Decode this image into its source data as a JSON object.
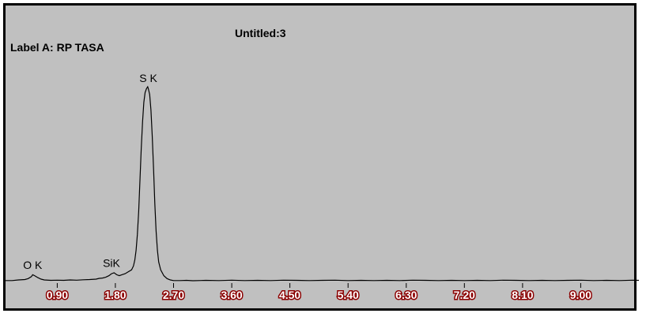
{
  "chart_data": {
    "type": "line",
    "title": "Untitled:3",
    "label_a": "Label A: RP TASA",
    "xlim": [
      0.1,
      9.9
    ],
    "ylim": [
      0,
      100
    ],
    "x_ticks": [
      "0.90",
      "1.80",
      "2.70",
      "3.60",
      "4.50",
      "5.40",
      "6.30",
      "7.20",
      "8.10",
      "9.00"
    ],
    "peak_labels": [
      {
        "text": "O K",
        "x": 0.52,
        "y": 4
      },
      {
        "text": "SiK",
        "x": 1.74,
        "y": 5
      },
      {
        "text": "S K",
        "x": 2.31,
        "y": 100
      }
    ],
    "series": [
      {
        "x": [
          0.1,
          0.2,
          0.3,
          0.4,
          0.45,
          0.5,
          0.52,
          0.55,
          0.6,
          0.65,
          0.7,
          0.8,
          0.9,
          1.0,
          1.1,
          1.2,
          1.3,
          1.4,
          1.5,
          1.55,
          1.6,
          1.65,
          1.7,
          1.74,
          1.78,
          1.82,
          1.86,
          1.9,
          1.95,
          2.0,
          2.05,
          2.08,
          2.1,
          2.12,
          2.14,
          2.16,
          2.18,
          2.2,
          2.22,
          2.24,
          2.26,
          2.28,
          2.3,
          2.31,
          2.33,
          2.35,
          2.37,
          2.39,
          2.41,
          2.43,
          2.45,
          2.47,
          2.5,
          2.55,
          2.6,
          2.65,
          2.7,
          2.8,
          2.9,
          3.0,
          3.2,
          3.4,
          3.6,
          3.8,
          4.0,
          4.2,
          4.4,
          4.6,
          4.8,
          5.0,
          5.2,
          5.4,
          5.6,
          5.8,
          6.0,
          6.2,
          6.4,
          6.6,
          6.8,
          7.0,
          7.2,
          7.4,
          7.6,
          7.8,
          8.0,
          8.2,
          8.4,
          8.6,
          8.8,
          9.0,
          9.2,
          9.4,
          9.6,
          9.8,
          9.9
        ],
        "y": [
          0.5,
          0.5,
          0.8,
          1.0,
          1.5,
          2.5,
          3.5,
          3.0,
          2.0,
          1.2,
          0.8,
          0.6,
          0.7,
          0.6,
          0.8,
          0.7,
          0.9,
          1.0,
          1.2,
          1.6,
          1.8,
          2.2,
          3.0,
          4.0,
          4.5,
          3.5,
          3.0,
          3.5,
          4.0,
          5.0,
          6.0,
          8.0,
          11.0,
          16.0,
          24.0,
          36.0,
          52.0,
          68.0,
          82.0,
          92.0,
          97.0,
          99.0,
          100.0,
          99.0,
          96.0,
          88.0,
          75.0,
          58.0,
          40.0,
          26.0,
          16.0,
          10.0,
          6.0,
          3.0,
          1.5,
          0.8,
          0.5,
          0.5,
          0.6,
          0.4,
          0.6,
          0.5,
          0.7,
          0.5,
          0.6,
          0.5,
          0.7,
          0.6,
          0.5,
          0.6,
          0.7,
          0.5,
          0.6,
          0.5,
          0.6,
          0.5,
          0.7,
          0.6,
          0.5,
          0.6,
          0.5,
          0.6,
          0.5,
          0.7,
          0.6,
          0.5,
          0.6,
          0.5,
          0.6,
          0.7,
          0.5,
          0.6,
          0.5,
          0.7,
          0.6
        ]
      }
    ]
  }
}
